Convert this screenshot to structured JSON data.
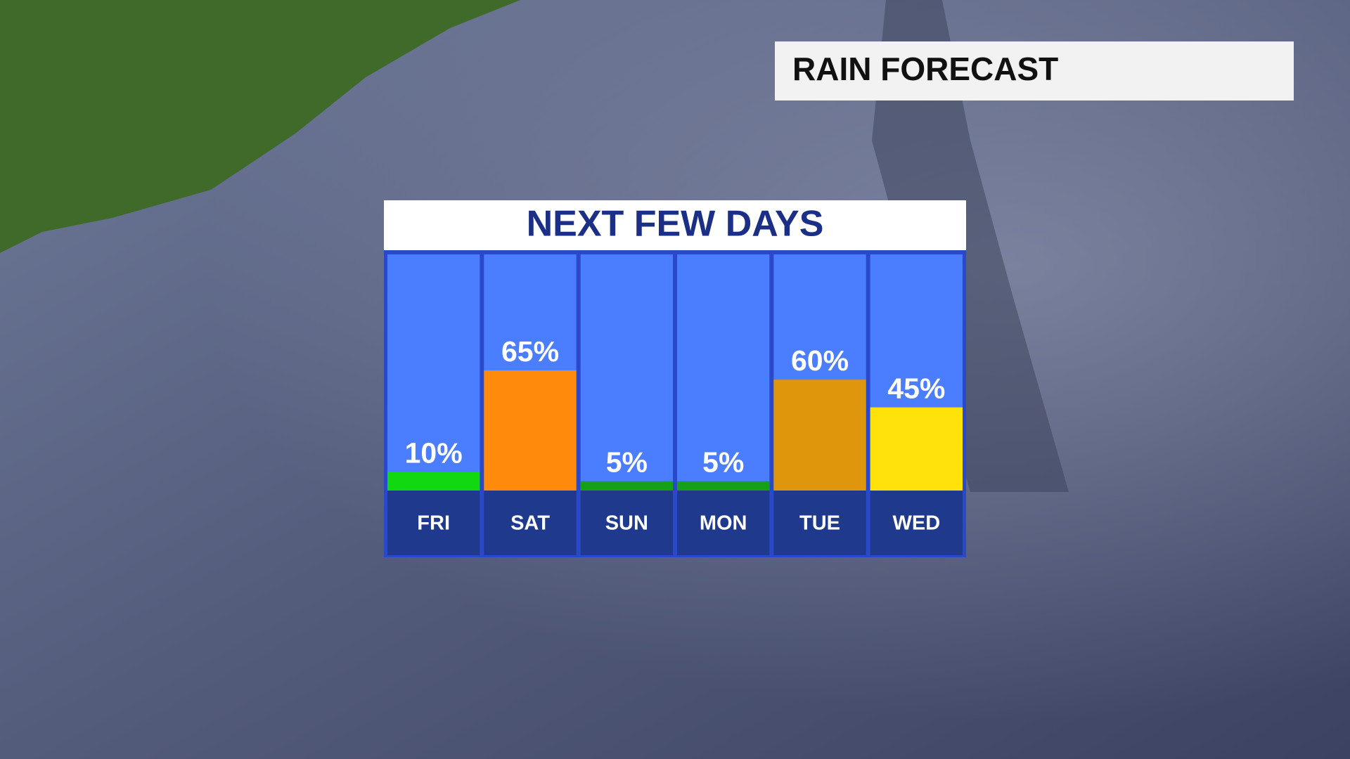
{
  "header": {
    "title": "RAIN FORECAST"
  },
  "chart_data": {
    "type": "bar",
    "title": "NEXT FEW DAYS",
    "categories": [
      "FRI",
      "SAT",
      "SUN",
      "MON",
      "TUE",
      "WED"
    ],
    "values": [
      10,
      65,
      5,
      5,
      60,
      45
    ],
    "value_labels": [
      "10%",
      "65%",
      "5%",
      "5%",
      "60%",
      "45%"
    ],
    "colors": [
      "#12d812",
      "#ff8a0c",
      "#16a018",
      "#16a018",
      "#e0960c",
      "#ffe20a"
    ]
  }
}
